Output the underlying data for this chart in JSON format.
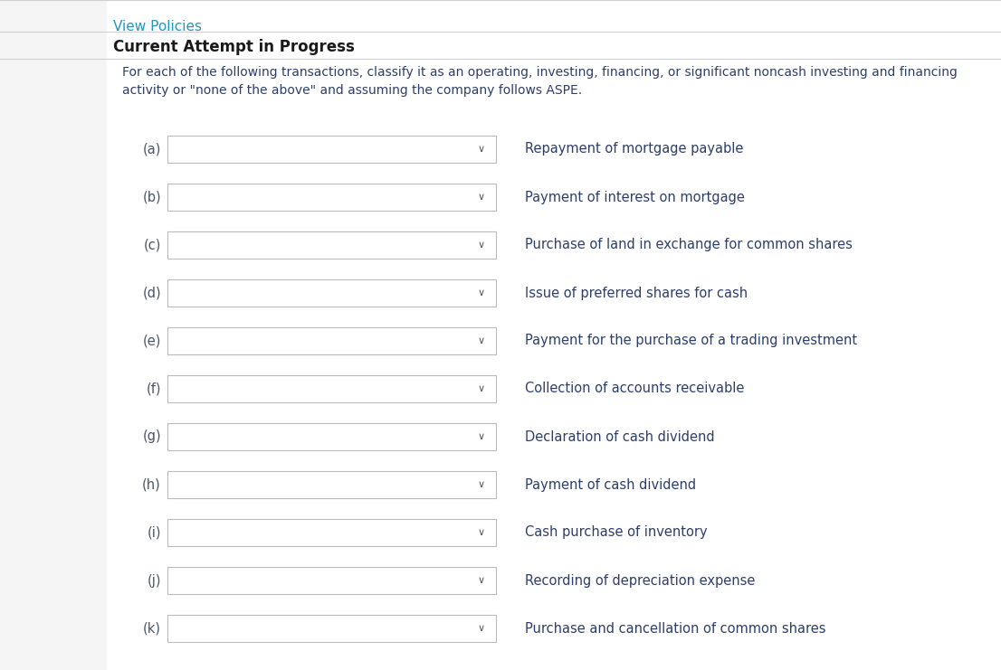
{
  "view_policies_text": "View Policies",
  "view_policies_color": "#2196c4",
  "current_attempt_text": "Current Attempt in Progress",
  "instruction_line1": "For each of the following transactions, classify it as an operating, investing, financing, or significant noncash investing and financing",
  "instruction_line2": "activity or \"none of the above\" and assuming the company follows ASPE.",
  "instruction_color": "#2c3e6b",
  "white_bg": "#ffffff",
  "left_panel_color": "#f5f5f5",
  "separator_color": "#d0d0d0",
  "items": [
    {
      "label": "(a)",
      "description": "Repayment of mortgage payable"
    },
    {
      "label": "(b)",
      "description": "Payment of interest on mortgage"
    },
    {
      "label": "(c)",
      "description": "Purchase of land in exchange for common shares"
    },
    {
      "label": "(d)",
      "description": "Issue of preferred shares for cash"
    },
    {
      "label": "(e)",
      "description": "Payment for the purchase of a trading investment"
    },
    {
      "label": "(f)",
      "description": "Collection of accounts receivable"
    },
    {
      "label": "(g)",
      "description": "Declaration of cash dividend"
    },
    {
      "label": "(h)",
      "description": "Payment of cash dividend"
    },
    {
      "label": "(i)",
      "description": "Cash purchase of inventory"
    },
    {
      "label": "(j)",
      "description": "Recording of depreciation expense"
    },
    {
      "label": "(k)",
      "description": "Purchase and cancellation of common shares"
    }
  ],
  "label_color": "#4a5568",
  "description_color": "#2c3e6b",
  "dropdown_bg": "#ffffff",
  "dropdown_border": "#bbbbbb",
  "dropdown_arrow_color": "#555555",
  "title_color": "#1a1a1a",
  "fig_width": 11.06,
  "fig_height": 7.41,
  "dpi": 100
}
